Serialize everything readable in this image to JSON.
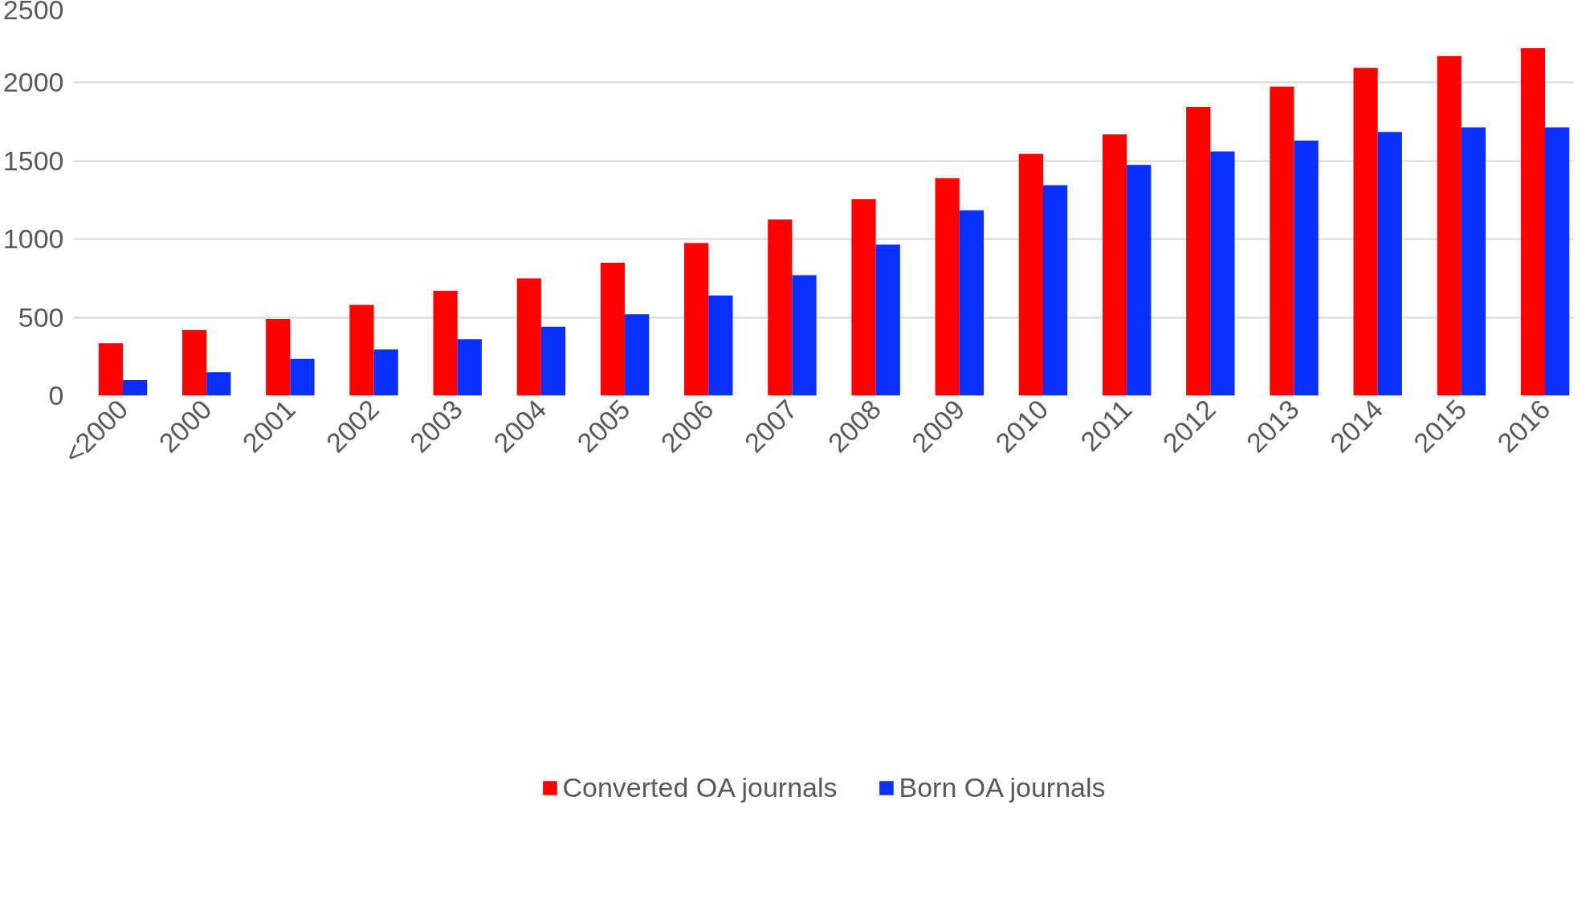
{
  "chart_data": {
    "type": "bar",
    "categories": [
      "<2000",
      "2000",
      "2001",
      "2002",
      "2003",
      "2004",
      "2005",
      "2006",
      "2007",
      "2008",
      "2009",
      "2010",
      "2011",
      "2012",
      "2013",
      "2014",
      "2015",
      "2016"
    ],
    "series": [
      {
        "name": "Converted OA journals",
        "color": "#ff0000",
        "values": [
          335,
          420,
          490,
          580,
          670,
          750,
          850,
          975,
          1125,
          1255,
          1390,
          1545,
          1670,
          1845,
          1975,
          2095,
          2170,
          2220
        ]
      },
      {
        "name": "Born OA journals",
        "color": "#0a2fff",
        "values": [
          100,
          150,
          235,
          295,
          360,
          440,
          520,
          640,
          770,
          965,
          1185,
          1345,
          1475,
          1560,
          1630,
          1685,
          1715,
          1715
        ]
      }
    ],
    "ylim": [
      0,
      2500
    ],
    "yticks": [
      0,
      500,
      1000,
      1500,
      2000,
      2500
    ],
    "grid": "y",
    "legend": "bottom"
  }
}
